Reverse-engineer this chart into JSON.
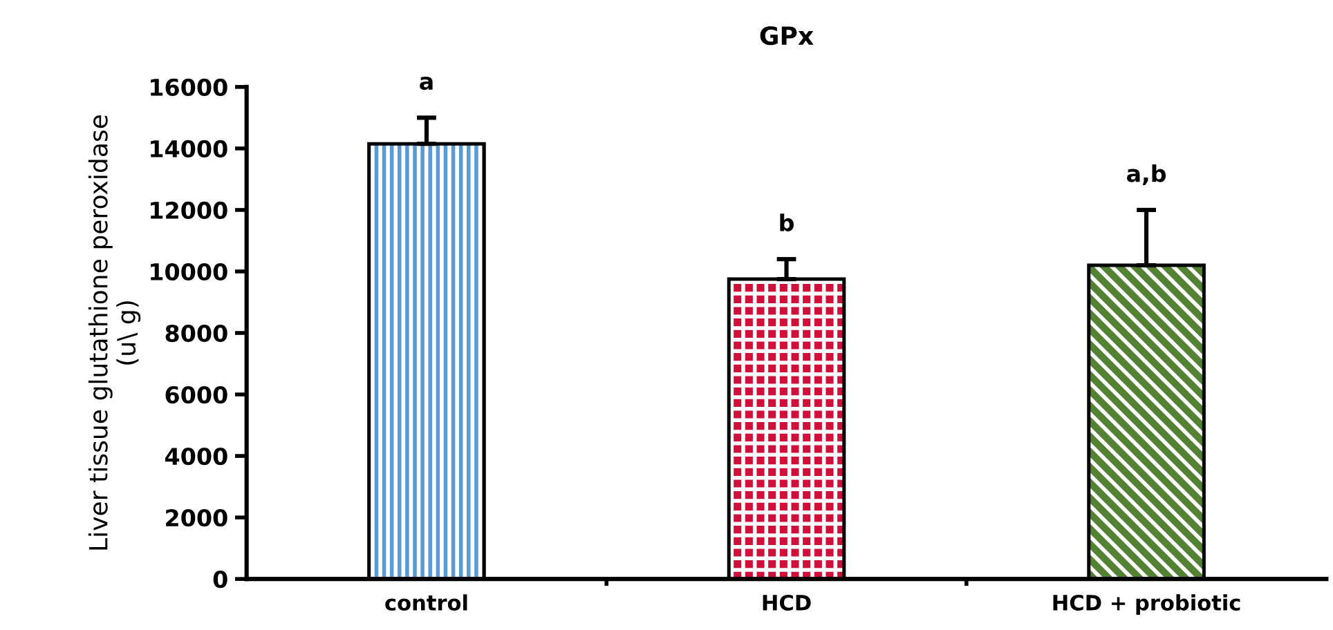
{
  "chart_data": {
    "type": "bar",
    "title": "GPx",
    "ylabel": "Liver tissue glutathione peroxidase\n(u\\ g)",
    "categories": [
      "control",
      "HCD",
      "HCD + probiotic"
    ],
    "values": [
      14150,
      9750,
      10200
    ],
    "errors": [
      [
        14150,
        15000
      ],
      [
        9750,
        10400
      ],
      [
        10200,
        12000
      ]
    ],
    "colors": [
      "#5b9bd5",
      "#d0103a",
      "#548235"
    ],
    "ylim": [
      0,
      16000
    ],
    "yticks": [
      0,
      2000,
      4000,
      6000,
      8000,
      10000,
      12000,
      14000,
      16000
    ],
    "grid": false,
    "annotations": [
      "a",
      "b",
      "a,b"
    ]
  }
}
